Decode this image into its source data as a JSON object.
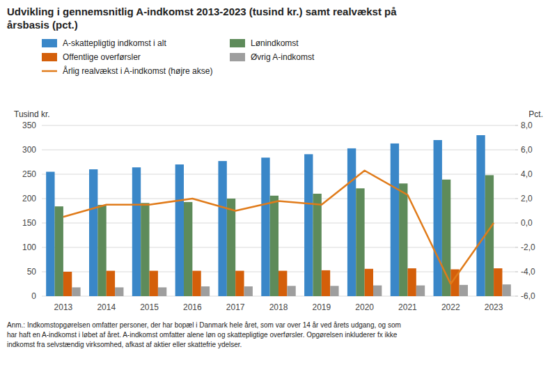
{
  "chart_data": {
    "type": "bar",
    "title": "Udvikling i gennemsnitlig A-indkomst 2013-2023 (tusind kr.) samt realvækst på\nårsbasis (pct.)",
    "categories": [
      "2013",
      "2014",
      "2015",
      "2016",
      "2017",
      "2018",
      "2019",
      "2020",
      "2021",
      "2022",
      "2023"
    ],
    "series": [
      {
        "name": "A-skattepligtig indkomst i alt",
        "type": "bar",
        "color": "#3a87c8",
        "values": [
          255,
          260,
          264,
          270,
          277,
          284,
          291,
          303,
          313,
          320,
          330
        ]
      },
      {
        "name": "Lønindkomst",
        "type": "bar",
        "color": "#5e8b5a",
        "values": [
          184,
          187,
          191,
          193,
          200,
          206,
          210,
          221,
          231,
          239,
          248
        ]
      },
      {
        "name": "Offentlige overførsler",
        "type": "bar",
        "color": "#d45f0a",
        "values": [
          50,
          52,
          52,
          52,
          52,
          52,
          53,
          56,
          57,
          55,
          57
        ]
      },
      {
        "name": "Øvrig A-indkomst",
        "type": "bar",
        "color": "#9e9e9e",
        "values": [
          18,
          18,
          18,
          20,
          20,
          21,
          21,
          22,
          22,
          23,
          24
        ]
      },
      {
        "name": "Årlig realvækst i A-indkomst (højre akse)",
        "type": "line",
        "axis": "y2",
        "color": "#e07b1a",
        "values": [
          0.5,
          1.5,
          1.5,
          2.0,
          1.0,
          1.8,
          1.5,
          4.3,
          2.3,
          -5.0,
          0.0
        ]
      }
    ],
    "ylabel": "Tusind kr.",
    "y2label": "Pct.",
    "ylim": [
      0,
      350
    ],
    "yticks": [
      0,
      50,
      100,
      150,
      200,
      250,
      300,
      350
    ],
    "y2lim": [
      -6.0,
      8.0
    ],
    "y2ticks": [
      {
        "value": -6.0,
        "label": "-6,0"
      },
      {
        "value": -4.0,
        "label": "-4,0"
      },
      {
        "value": -2.0,
        "label": "-2,0"
      },
      {
        "value": 0.0,
        "label": "0,0"
      },
      {
        "value": 2.0,
        "label": "2,0"
      },
      {
        "value": 4.0,
        "label": "4,0"
      },
      {
        "value": 6.0,
        "label": "6,0"
      },
      {
        "value": 8.0,
        "label": "8,0"
      }
    ],
    "annotations": [
      "Anm.: Indkomstopgørelsen omfatter personer, der har bopæl i Danmark hele året, som var over 14 år ved årets udgang, og som\nhar haft en A-indkomst i løbet af året. A-indkomst omfatter alene løn og skattepligtige overførsler. Opgørelsen inkluderer fx ikke\nindkomst fra selvstændig virksomhed, afkast af aktier eller skattefrie ydelser."
    ],
    "grid": true,
    "legend": "top"
  }
}
